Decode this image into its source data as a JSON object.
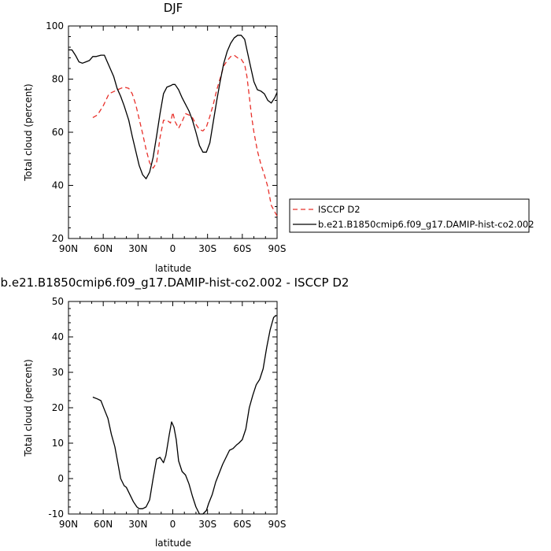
{
  "chart_data": [
    {
      "type": "line",
      "title": "DJF",
      "xlabel": "latitude",
      "ylabel": "Total cloud (percent)",
      "xlim": [
        -90,
        90
      ],
      "ylim": [
        20,
        100
      ],
      "xticks": [
        {
          "v": -90,
          "label": "90N"
        },
        {
          "v": -60,
          "label": "60N"
        },
        {
          "v": -30,
          "label": "30N"
        },
        {
          "v": 0,
          "label": "0"
        },
        {
          "v": 30,
          "label": "30S"
        },
        {
          "v": 60,
          "label": "60S"
        },
        {
          "v": 90,
          "label": "90S"
        }
      ],
      "yticks": [
        {
          "v": 20,
          "label": "20"
        },
        {
          "v": 40,
          "label": "40"
        },
        {
          "v": 60,
          "label": "60"
        },
        {
          "v": 80,
          "label": "80"
        },
        {
          "v": 100,
          "label": "100"
        }
      ],
      "legend_position": "right",
      "series": [
        {
          "name": "ISCCP D2",
          "color": "#e8302a",
          "dash": "dashed",
          "x": [
            -69,
            -65,
            -60,
            -55,
            -50,
            -45,
            -42,
            -38,
            -35,
            -32,
            -29,
            -26,
            -23,
            -20,
            -17,
            -14,
            -11,
            -8,
            -5,
            -2,
            0,
            2,
            5,
            8,
            11,
            14,
            17,
            20,
            23,
            26,
            29,
            32,
            35,
            38,
            41,
            44,
            47,
            50,
            53,
            56,
            59,
            62,
            64,
            66,
            68,
            70,
            73,
            76,
            79,
            82,
            85,
            88,
            90
          ],
          "y": [
            65.5,
            66.5,
            70,
            74.5,
            75.5,
            76.5,
            77,
            76.5,
            74.5,
            70.5,
            65,
            59.5,
            53.5,
            48.5,
            46.5,
            48.5,
            58,
            64.5,
            64.5,
            63.5,
            67.5,
            64,
            61.5,
            64,
            67,
            66.5,
            65.5,
            63,
            61,
            60.5,
            62,
            66,
            70.5,
            76,
            80.5,
            85,
            87,
            88.5,
            89,
            88,
            87.5,
            85.5,
            81,
            73.5,
            66,
            60,
            53,
            48,
            44,
            39.5,
            32.5,
            30,
            28.5
          ]
        },
        {
          "name": "b.e21.B1850cmip6.f09_g17.DAMIP-hist-co2.002",
          "color": "#000000",
          "dash": "solid",
          "x": [
            -90,
            -87,
            -84,
            -81,
            -78,
            -75,
            -72,
            -69,
            -66,
            -62,
            -59,
            -55,
            -51,
            -48,
            -45,
            -42,
            -38,
            -35,
            -32,
            -29,
            -26,
            -23,
            -20,
            -17,
            -14,
            -11,
            -8,
            -5,
            -2,
            0,
            2,
            5,
            8,
            11,
            14,
            17,
            20,
            23,
            26,
            29,
            32,
            35,
            38,
            41,
            44,
            47,
            50,
            53,
            56,
            59,
            62,
            64,
            67,
            70,
            73,
            76,
            79,
            82,
            85,
            88,
            90
          ],
          "y": [
            91,
            91,
            89,
            86.5,
            86,
            86.5,
            87,
            88.5,
            88.5,
            89,
            89,
            85,
            81,
            76.5,
            73.5,
            70,
            64.5,
            58.5,
            53,
            47.5,
            44,
            42.5,
            45,
            50.5,
            58.5,
            67,
            74.5,
            77,
            77.5,
            78,
            78,
            76,
            73,
            70.5,
            68,
            64.5,
            60,
            55,
            52.5,
            52.5,
            56,
            64,
            72,
            79.5,
            86,
            90.5,
            93.5,
            95.5,
            96.5,
            96.5,
            95,
            91,
            85,
            79,
            76,
            75.5,
            74.5,
            72,
            71,
            73,
            75
          ]
        }
      ]
    },
    {
      "type": "line",
      "title": "b.e21.B1850cmip6.f09_g17.DAMIP-hist-co2.002 - ISCCP D2",
      "xlabel": "latitude",
      "ylabel": "Total cloud (percent)",
      "xlim": [
        -90,
        90
      ],
      "ylim": [
        -10,
        50
      ],
      "xticks": [
        {
          "v": -90,
          "label": "90N"
        },
        {
          "v": -60,
          "label": "60N"
        },
        {
          "v": -30,
          "label": "30N"
        },
        {
          "v": 0,
          "label": "0"
        },
        {
          "v": 30,
          "label": "30S"
        },
        {
          "v": 60,
          "label": "60S"
        },
        {
          "v": 90,
          "label": "90S"
        }
      ],
      "yticks": [
        {
          "v": -10,
          "label": "-10"
        },
        {
          "v": 0,
          "label": "0"
        },
        {
          "v": 10,
          "label": "10"
        },
        {
          "v": 20,
          "label": "20"
        },
        {
          "v": 30,
          "label": "30"
        },
        {
          "v": 40,
          "label": "40"
        },
        {
          "v": 50,
          "label": "50"
        }
      ],
      "series": [
        {
          "color": "#000000",
          "dash": "solid",
          "x": [
            -69,
            -65,
            -62,
            -59,
            -56,
            -53,
            -50,
            -48,
            -45,
            -42,
            -40,
            -37,
            -34,
            -31,
            -29,
            -26,
            -23,
            -20,
            -17,
            -14,
            -11,
            -8,
            -6,
            -3,
            -1,
            1,
            3,
            5,
            8,
            11,
            14,
            17,
            20,
            23,
            26,
            29,
            31,
            34,
            37,
            40,
            43,
            46,
            49,
            52,
            55,
            57,
            60,
            63,
            66,
            69,
            72,
            75,
            78,
            81,
            84,
            87,
            89,
            90
          ],
          "y": [
            23,
            22.5,
            22,
            19.5,
            17,
            12.5,
            9,
            5.5,
            0,
            -2,
            -2.5,
            -4.5,
            -6.5,
            -8,
            -8.5,
            -8.5,
            -8,
            -6,
            0,
            5.5,
            6,
            4.5,
            6.5,
            12.5,
            16,
            14.5,
            11,
            5,
            2,
            1,
            -1.5,
            -5,
            -8,
            -10,
            -10,
            -9,
            -7,
            -4.5,
            -1,
            1.5,
            4,
            6,
            8,
            8.5,
            9.5,
            10,
            11,
            14,
            20,
            23.5,
            26.5,
            28,
            31,
            37,
            42,
            45.5,
            46,
            46
          ]
        }
      ]
    }
  ]
}
